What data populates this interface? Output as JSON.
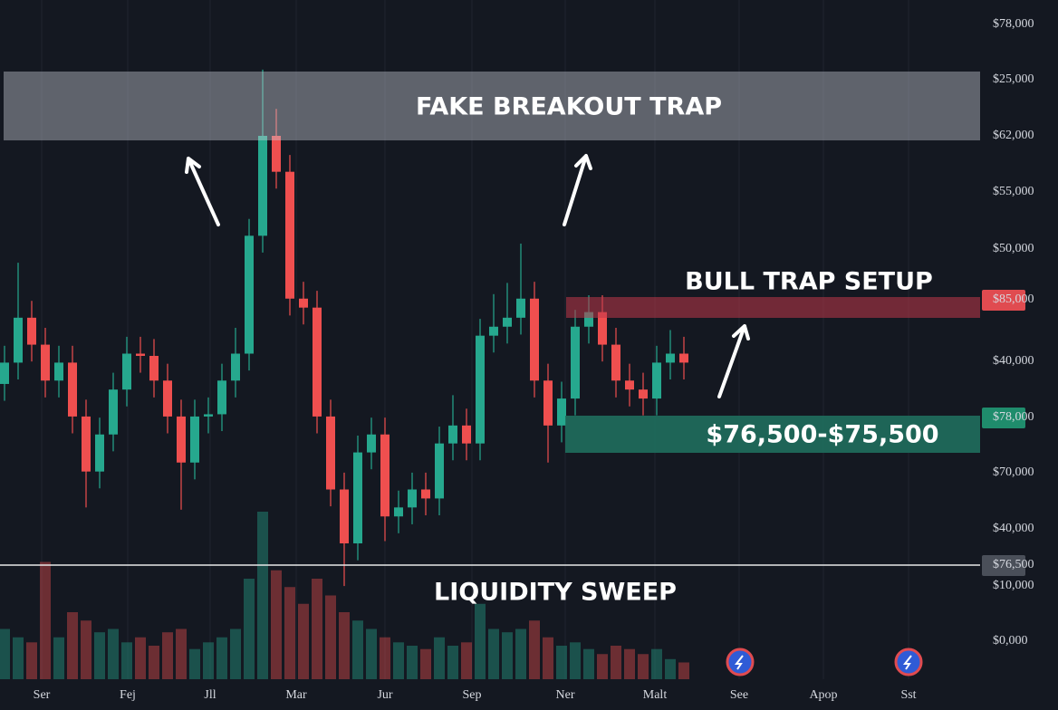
{
  "chart_data": {
    "type": "candlestick",
    "open": [
      38000,
      39900,
      43900,
      41500,
      38300,
      39900,
      35100,
      30200,
      33500,
      37500,
      40700,
      40500,
      38300,
      35100,
      31000,
      35100,
      35300,
      38300,
      40700,
      51200,
      60100,
      56900,
      45600,
      44800,
      35100,
      28600,
      23800,
      31900,
      33500,
      26200,
      27000,
      28600,
      27800,
      32700,
      34300,
      32700,
      42300,
      43100,
      43900,
      45600,
      38300,
      34300,
      36700,
      43100,
      44400,
      41500,
      38300,
      37500,
      36700,
      39900,
      40700
    ],
    "high": [
      41400,
      48800,
      45400,
      43000,
      41400,
      41400,
      36600,
      35000,
      39000,
      42200,
      42200,
      42000,
      39800,
      36600,
      36600,
      36800,
      39800,
      43000,
      52700,
      66000,
      62500,
      58400,
      47100,
      46300,
      36600,
      30100,
      33400,
      35000,
      35000,
      28500,
      30100,
      30100,
      34200,
      37000,
      35800,
      43800,
      46000,
      47000,
      50500,
      47100,
      39800,
      38200,
      44600,
      45900,
      45900,
      43000,
      39800,
      39000,
      41400,
      42800,
      42200
    ],
    "low": [
      36500,
      38400,
      40000,
      36800,
      36800,
      33600,
      27000,
      28700,
      32000,
      36000,
      39000,
      36800,
      33600,
      26800,
      29500,
      33600,
      33800,
      36800,
      39200,
      49700,
      55400,
      44100,
      43300,
      33600,
      27100,
      20000,
      22300,
      30400,
      24000,
      24700,
      25500,
      26300,
      26300,
      31200,
      31200,
      31200,
      40800,
      41600,
      42400,
      36800,
      31000,
      32800,
      35200,
      41600,
      40000,
      36800,
      36000,
      35200,
      35200,
      38400,
      38400
    ],
    "close": [
      39900,
      43900,
      41500,
      38300,
      39900,
      35100,
      30200,
      33500,
      37500,
      40700,
      40500,
      38300,
      35100,
      31000,
      35100,
      35300,
      38300,
      40700,
      51200,
      60100,
      56900,
      45600,
      44800,
      35100,
      28600,
      23800,
      31900,
      33500,
      26200,
      27000,
      28600,
      27800,
      32700,
      34300,
      32700,
      42300,
      43100,
      43900,
      45600,
      38300,
      34300,
      36700,
      43100,
      44400,
      41500,
      38300,
      37500,
      36700,
      39900,
      40700,
      39900
    ],
    "volume": [
      30,
      25,
      22,
      70,
      25,
      40,
      35,
      28,
      30,
      22,
      25,
      20,
      28,
      30,
      18,
      22,
      25,
      30,
      60,
      100,
      65,
      55,
      45,
      60,
      50,
      40,
      35,
      30,
      25,
      22,
      20,
      18,
      25,
      20,
      22,
      45,
      30,
      28,
      30,
      35,
      25,
      20,
      22,
      18,
      15,
      20,
      18,
      15,
      18,
      12,
      10
    ],
    "ylim": [
      11700,
      72200
    ],
    "vlim": [
      0,
      100
    ],
    "up_color": "#26a88e",
    "down_color": "#ef4f4f"
  },
  "price_axis_labels": [
    "$78,000",
    "$25,000",
    "$62,000",
    "$55,000",
    "$50,000",
    "$85,000",
    "$40,000",
    "$78,000",
    "$70,000",
    "$40,000",
    "$76,500",
    "$10,000",
    "$0,000"
  ],
  "time_axis_labels": [
    "Ser",
    "Fej",
    "Jll",
    "Mar",
    "Jur",
    "Sep",
    "Ner",
    "Malt",
    "See",
    "Apop",
    "Sst"
  ],
  "annotations": {
    "fake_breakout": "FAKE BREAKOUT TRAP",
    "bull_trap": "BULL TRAP SETUP",
    "support_zone": "$76,500-$75,500",
    "liquidity_sweep": "LIQUIDITY SWEEP"
  }
}
